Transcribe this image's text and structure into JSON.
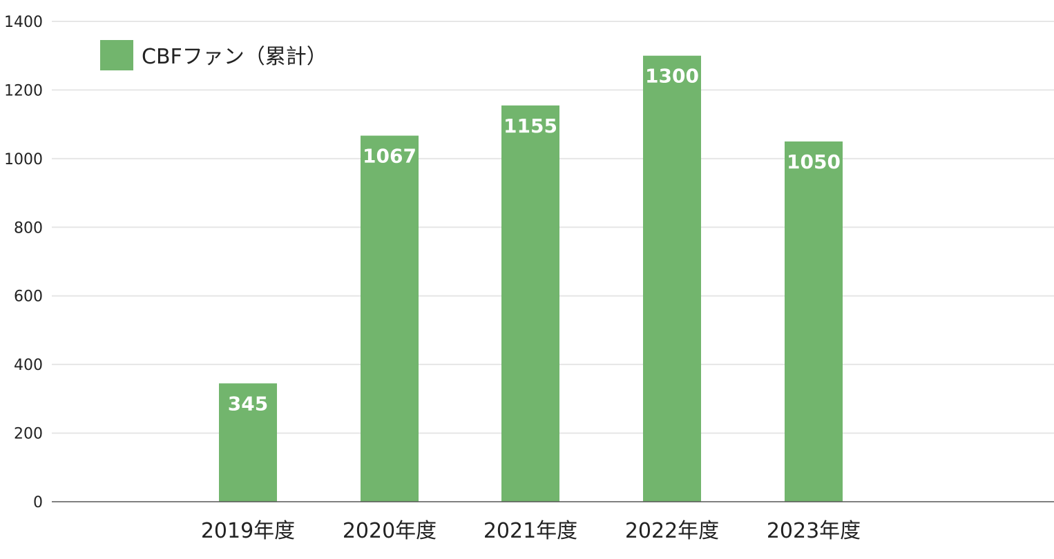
{
  "chart_data": {
    "type": "bar",
    "categories": [
      "2019年度",
      "2020年度",
      "2021年度",
      "2022年度",
      "2023年度"
    ],
    "series": [
      {
        "name": "CBFファン（累計）",
        "values": [
          345,
          1067,
          1155,
          1300,
          1050
        ],
        "color": "#72b56d"
      }
    ],
    "ylim": [
      0,
      1400
    ],
    "yticks": [
      0,
      200,
      400,
      600,
      800,
      1000,
      1200,
      1400
    ],
    "grid": true,
    "legend": "top-left",
    "title": "",
    "xlabel": "",
    "ylabel": ""
  }
}
